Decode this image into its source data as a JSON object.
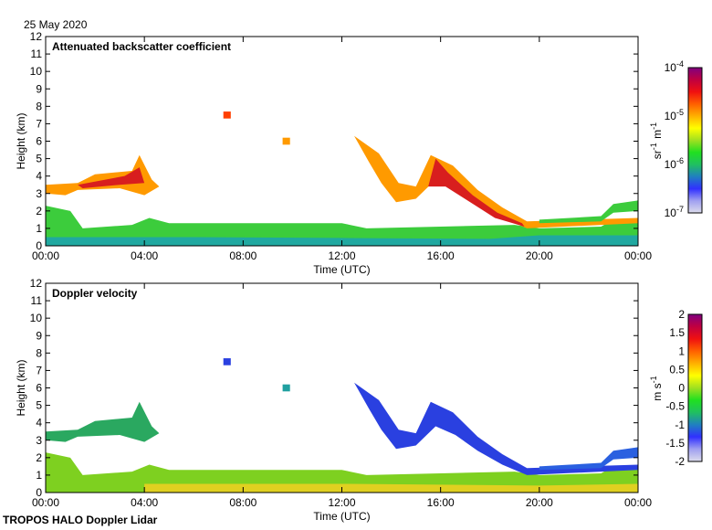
{
  "date_label": "25 May 2020",
  "footer": "TROPOS HALO Doppler Lidar",
  "chart_data": [
    {
      "type": "heatmap",
      "title": "Attenuated backscatter coefficient",
      "xlabel": "Time (UTC)",
      "ylabel": "Height (km)",
      "xlim": [
        0,
        24
      ],
      "ylim": [
        0,
        12
      ],
      "xticks": [
        "00:00",
        "04:00",
        "08:00",
        "12:00",
        "16:00",
        "20:00",
        "00:00"
      ],
      "yticks": [
        "0",
        "1",
        "2",
        "3",
        "4",
        "5",
        "6",
        "7",
        "8",
        "9",
        "10",
        "11",
        "12"
      ],
      "colorbar": {
        "label": "sr-1 m-1",
        "ticks": [
          "10-4",
          "10-5",
          "10-6",
          "10-7"
        ],
        "range": [
          1e-07,
          0.0001
        ],
        "scale": "log"
      },
      "features": [
        {
          "name": "boundary-layer",
          "color": "#3ccc3c",
          "points": [
            [
              0,
              0
            ],
            [
              0,
              2.3
            ],
            [
              1,
              2.0
            ],
            [
              1.5,
              1.0
            ],
            [
              3.5,
              1.2
            ],
            [
              4.2,
              1.6
            ],
            [
              5,
              1.3
            ],
            [
              12,
              1.3
            ],
            [
              13,
              1.0
            ],
            [
              16,
              1.1
            ],
            [
              19,
              1.2
            ],
            [
              20,
              1.0
            ],
            [
              22.5,
              1.1
            ],
            [
              23,
              1.5
            ],
            [
              24,
              1.4
            ],
            [
              24,
              0
            ]
          ]
        },
        {
          "name": "surface-layer",
          "color": "#20a8a0",
          "points": [
            [
              0,
              0
            ],
            [
              0,
              0.5
            ],
            [
              6,
              0.5
            ],
            [
              12,
              0.45
            ],
            [
              18,
              0.4
            ],
            [
              20,
              0.6
            ],
            [
              24,
              0.6
            ],
            [
              24,
              0
            ]
          ]
        },
        {
          "name": "residual-layer",
          "color": "#ff9a00",
          "points": [
            [
              0,
              3.0
            ],
            [
              0,
              3.5
            ],
            [
              1.3,
              3.6
            ],
            [
              2,
              4.1
            ],
            [
              3.5,
              4.3
            ],
            [
              3.8,
              5.2
            ],
            [
              4.3,
              3.8
            ],
            [
              4.6,
              3.4
            ],
            [
              4.0,
              2.9
            ],
            [
              3.0,
              3.3
            ],
            [
              1.3,
              3.2
            ],
            [
              0.8,
              2.9
            ]
          ]
        },
        {
          "name": "residual-layer-core",
          "color": "#d81e1e",
          "points": [
            [
              1.3,
              3.5
            ],
            [
              3.2,
              4.0
            ],
            [
              3.8,
              4.5
            ],
            [
              4.0,
              3.6
            ],
            [
              3.0,
              3.5
            ],
            [
              1.5,
              3.3
            ]
          ]
        },
        {
          "name": "cloud-layer",
          "color": "#ff9a00",
          "points": [
            [
              12.5,
              6.3
            ],
            [
              13.5,
              5.3
            ],
            [
              14.3,
              3.6
            ],
            [
              15,
              3.4
            ],
            [
              15.6,
              5.2
            ],
            [
              16.5,
              4.6
            ],
            [
              17.5,
              3.2
            ],
            [
              18.5,
              2.2
            ],
            [
              19.5,
              1.4
            ],
            [
              24,
              1.6
            ],
            [
              24,
              1.3
            ],
            [
              19.5,
              1.0
            ],
            [
              18.5,
              1.6
            ],
            [
              17.5,
              2.4
            ],
            [
              16.6,
              3.3
            ],
            [
              15.8,
              3.8
            ],
            [
              15.0,
              2.7
            ],
            [
              14.2,
              2.5
            ],
            [
              13.6,
              3.6
            ],
            [
              13.1,
              4.8
            ]
          ]
        },
        {
          "name": "cloud-core",
          "color": "#d81e1e",
          "points": [
            [
              15.5,
              3.4
            ],
            [
              15.8,
              5.0
            ],
            [
              16.3,
              4.2
            ],
            [
              17.3,
              2.9
            ],
            [
              18.3,
              1.9
            ],
            [
              19.3,
              1.3
            ],
            [
              19.4,
              1.1
            ],
            [
              18.2,
              1.6
            ],
            [
              17.2,
              2.5
            ],
            [
              16.2,
              3.4
            ]
          ]
        },
        {
          "name": "upper-aerosol",
          "color": "#3ccc3c",
          "points": [
            [
              20,
              1.5
            ],
            [
              22.5,
              1.7
            ],
            [
              23,
              2.4
            ],
            [
              24,
              2.6
            ],
            [
              24,
              2.0
            ],
            [
              23,
              1.9
            ],
            [
              22.5,
              1.4
            ],
            [
              20,
              1.3
            ]
          ]
        },
        {
          "name": "speck-1",
          "color": "#ff4000",
          "points": [
            [
              7.2,
              7.7
            ],
            [
              7.5,
              7.7
            ],
            [
              7.5,
              7.3
            ],
            [
              7.2,
              7.3
            ]
          ]
        },
        {
          "name": "speck-2",
          "color": "#ff9a00",
          "points": [
            [
              9.6,
              6.2
            ],
            [
              9.9,
              6.2
            ],
            [
              9.9,
              5.8
            ],
            [
              9.6,
              5.8
            ]
          ]
        }
      ]
    },
    {
      "type": "heatmap",
      "title": "Doppler velocity",
      "xlabel": "Time (UTC)",
      "ylabel": "Height (km)",
      "xlim": [
        0,
        24
      ],
      "ylim": [
        0,
        12
      ],
      "xticks": [
        "00:00",
        "04:00",
        "08:00",
        "12:00",
        "16:00",
        "20:00",
        "00:00"
      ],
      "yticks": [
        "0",
        "1",
        "2",
        "3",
        "4",
        "5",
        "6",
        "7",
        "8",
        "9",
        "10",
        "11",
        "12"
      ],
      "colorbar": {
        "label": "m s-1",
        "ticks": [
          "2",
          "1.5",
          "1",
          "0.5",
          "0",
          "-0.5",
          "-1",
          "-1.5",
          "-2"
        ],
        "range": [
          -2,
          2
        ],
        "scale": "linear"
      },
      "features": [
        {
          "name": "boundary-layer",
          "color": "#7ed020",
          "points": [
            [
              0,
              0
            ],
            [
              0,
              2.3
            ],
            [
              1,
              2.0
            ],
            [
              1.5,
              1.0
            ],
            [
              3.5,
              1.2
            ],
            [
              4.2,
              1.6
            ],
            [
              5,
              1.3
            ],
            [
              12,
              1.3
            ],
            [
              13,
              1.0
            ],
            [
              16,
              1.1
            ],
            [
              19,
              1.2
            ],
            [
              20,
              1.0
            ],
            [
              22.5,
              1.1
            ],
            [
              23,
              1.5
            ],
            [
              24,
              1.4
            ],
            [
              24,
              0
            ]
          ]
        },
        {
          "name": "surface-layer",
          "color": "#e0d020",
          "points": [
            [
              4,
              0
            ],
            [
              4,
              0.5
            ],
            [
              12,
              0.5
            ],
            [
              20,
              0.4
            ],
            [
              24,
              0.5
            ],
            [
              24,
              0
            ]
          ]
        },
        {
          "name": "residual-layer",
          "color": "#2aa860",
          "points": [
            [
              0,
              3.0
            ],
            [
              0,
              3.5
            ],
            [
              1.3,
              3.6
            ],
            [
              2,
              4.1
            ],
            [
              3.5,
              4.3
            ],
            [
              3.8,
              5.2
            ],
            [
              4.3,
              3.8
            ],
            [
              4.6,
              3.4
            ],
            [
              4.0,
              2.9
            ],
            [
              3.0,
              3.3
            ],
            [
              1.3,
              3.2
            ],
            [
              0.8,
              2.9
            ]
          ]
        },
        {
          "name": "cloud-layer",
          "color": "#2a40e0",
          "points": [
            [
              12.5,
              6.3
            ],
            [
              13.5,
              5.3
            ],
            [
              14.3,
              3.6
            ],
            [
              15,
              3.4
            ],
            [
              15.6,
              5.2
            ],
            [
              16.5,
              4.6
            ],
            [
              17.5,
              3.2
            ],
            [
              18.5,
              2.2
            ],
            [
              19.5,
              1.4
            ],
            [
              24,
              1.6
            ],
            [
              24,
              1.3
            ],
            [
              19.5,
              1.0
            ],
            [
              18.5,
              1.6
            ],
            [
              17.5,
              2.4
            ],
            [
              16.6,
              3.3
            ],
            [
              15.8,
              3.8
            ],
            [
              15.0,
              2.7
            ],
            [
              14.2,
              2.5
            ],
            [
              13.6,
              3.6
            ],
            [
              13.1,
              4.8
            ]
          ]
        },
        {
          "name": "upper-aerosol",
          "color": "#2a60e0",
          "points": [
            [
              20,
              1.5
            ],
            [
              22.5,
              1.7
            ],
            [
              23,
              2.4
            ],
            [
              24,
              2.6
            ],
            [
              24,
              2.0
            ],
            [
              23,
              1.9
            ],
            [
              22.5,
              1.4
            ],
            [
              20,
              1.3
            ]
          ]
        },
        {
          "name": "speck-1",
          "color": "#2a40e0",
          "points": [
            [
              7.2,
              7.7
            ],
            [
              7.5,
              7.7
            ],
            [
              7.5,
              7.3
            ],
            [
              7.2,
              7.3
            ]
          ]
        },
        {
          "name": "speck-2",
          "color": "#20a0a0",
          "points": [
            [
              9.6,
              6.2
            ],
            [
              9.9,
              6.2
            ],
            [
              9.9,
              5.8
            ],
            [
              9.6,
              5.8
            ]
          ]
        }
      ]
    }
  ],
  "colormap": [
    "#dcdcec",
    "#a0a0f0",
    "#3030ff",
    "#2080c0",
    "#20c060",
    "#20e020",
    "#a0e020",
    "#ffff00",
    "#ffb000",
    "#ff6000",
    "#f01010",
    "#c00040",
    "#800080"
  ]
}
